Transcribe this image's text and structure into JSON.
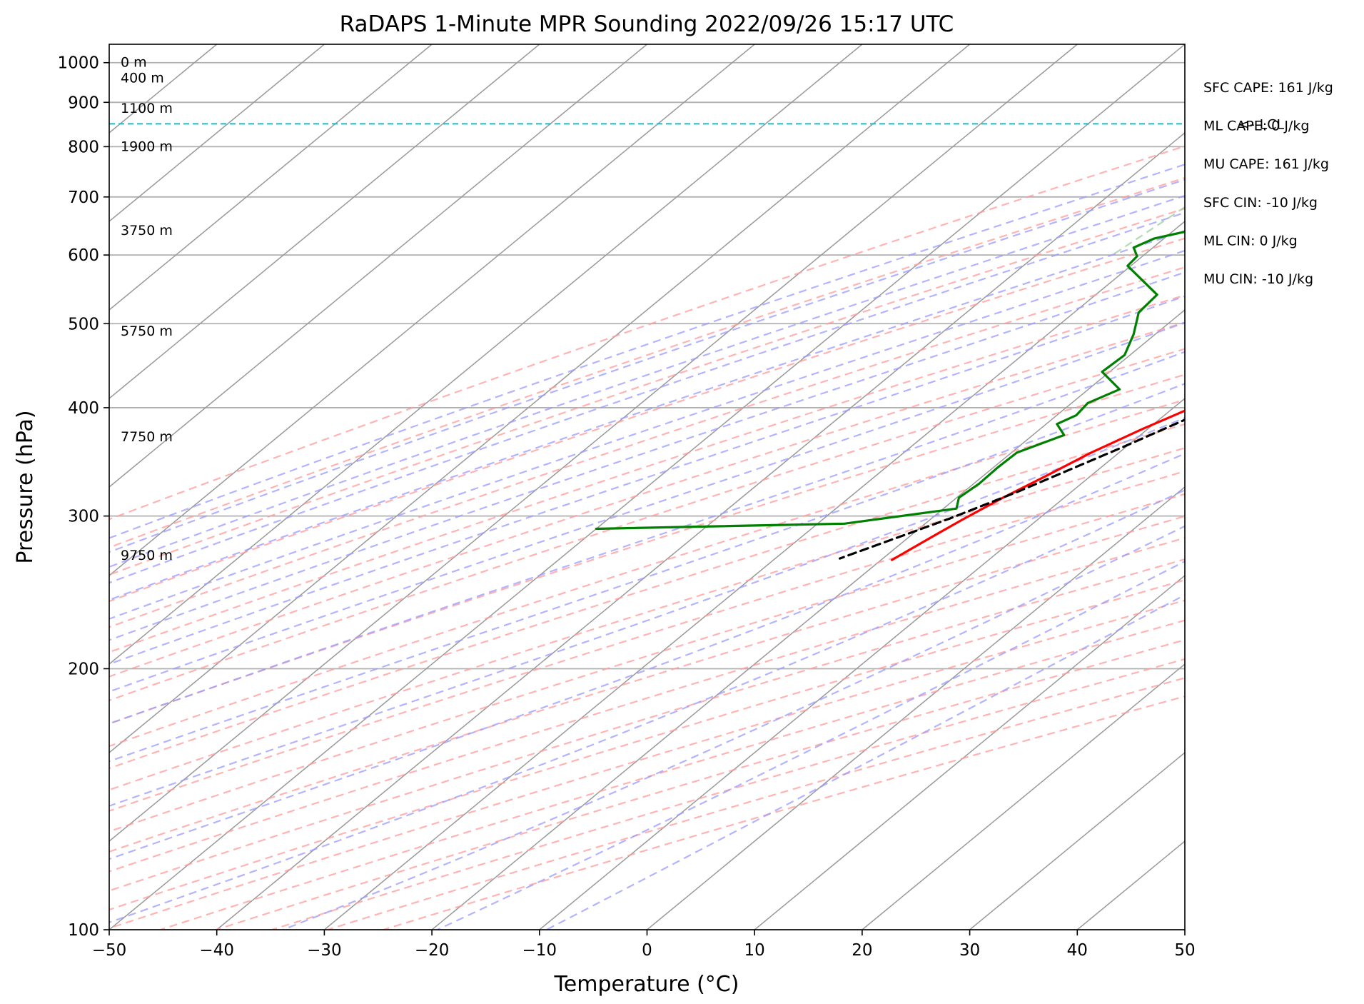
{
  "chart_data": {
    "type": "line",
    "title": "RaDAPS 1-Minute MPR Sounding 2022/09/26 15:17 UTC",
    "xlabel": "Temperature (°C)",
    "ylabel": "Pressure (hPa)",
    "xlim": [
      -50,
      50
    ],
    "ylim": [
      1050,
      100
    ],
    "y_scale": "log",
    "x_ticks": [
      -50,
      -40,
      -30,
      -20,
      -10,
      0,
      10,
      20,
      30,
      40,
      50
    ],
    "x_tick_labels": [
      "−50",
      "−40",
      "−30",
      "−20",
      "−10",
      "0",
      "10",
      "20",
      "30",
      "40",
      "50"
    ],
    "y_ticks": [
      100,
      200,
      300,
      400,
      500,
      600,
      700,
      800,
      900,
      1000
    ],
    "y_tick_labels": [
      "100",
      "200",
      "300",
      "400",
      "500",
      "600",
      "700",
      "800",
      "900",
      "1000"
    ],
    "grid": true,
    "skew_t": true,
    "height_labels": [
      {
        "text": "9750 m",
        "p": 270
      },
      {
        "text": "7750 m",
        "p": 370
      },
      {
        "text": "5750 m",
        "p": 490
      },
      {
        "text": "3750 m",
        "p": 640
      },
      {
        "text": "1900 m",
        "p": 800
      },
      {
        "text": "1100 m",
        "p": 885
      },
      {
        "text": "400 m",
        "p": 960
      },
      {
        "text": "0 m",
        "p": 1000
      }
    ],
    "lcl": {
      "p": 850,
      "label": "<--LCL",
      "color": "#17becf"
    },
    "series": [
      {
        "key": "temperature",
        "color": "#ff0000",
        "points": [
          [
            24.2,
            993
          ],
          [
            23.5,
            980
          ],
          [
            20.0,
            930
          ],
          [
            17.5,
            895
          ],
          [
            14.3,
            850
          ],
          [
            13.0,
            828
          ],
          [
            10.5,
            760
          ],
          [
            9.6,
            713
          ],
          [
            8.9,
            690
          ],
          [
            7.1,
            655
          ],
          [
            5.6,
            628
          ],
          [
            3.9,
            593
          ],
          [
            2.2,
            558
          ],
          [
            1.6,
            540
          ],
          [
            -0.3,
            510
          ],
          [
            -2.1,
            483
          ],
          [
            -3.4,
            463
          ],
          [
            -4.9,
            438
          ],
          [
            -6.5,
            420
          ],
          [
            -8.3,
            400
          ],
          [
            -10.5,
            378
          ],
          [
            -12.6,
            355
          ],
          [
            -14.2,
            333
          ],
          [
            -15.7,
            315
          ],
          [
            -17.0,
            297
          ],
          [
            -17.8,
            285
          ],
          [
            -19.0,
            267
          ]
        ]
      },
      {
        "key": "dewpoint",
        "color": "#008000",
        "points": [
          [
            13.6,
            993
          ],
          [
            10.6,
            988
          ],
          [
            8.2,
            978
          ],
          [
            7.9,
            968
          ],
          [
            8.8,
            960
          ],
          [
            9.6,
            935
          ],
          [
            11.2,
            913
          ],
          [
            11.0,
            897
          ],
          [
            10.1,
            880
          ],
          [
            9.8,
            863
          ],
          [
            6.7,
            846
          ],
          [
            2.8,
            832
          ],
          [
            1.0,
            820
          ],
          [
            -0.7,
            800
          ],
          [
            -4.9,
            783
          ],
          [
            -14.5,
            755
          ],
          [
            -18.2,
            730
          ],
          [
            -21.4,
            705
          ],
          [
            -22.8,
            690
          ],
          [
            -24.5,
            672
          ],
          [
            -25.8,
            655
          ],
          [
            -30.9,
            627
          ],
          [
            -31.8,
            612
          ],
          [
            -30.5,
            598
          ],
          [
            -30.3,
            583
          ],
          [
            -24.3,
            540
          ],
          [
            -24.0,
            515
          ],
          [
            -22.0,
            486
          ],
          [
            -20.5,
            460
          ],
          [
            -20.7,
            440
          ],
          [
            -17.1,
            420
          ],
          [
            -18.5,
            405
          ],
          [
            -18.2,
            392
          ],
          [
            -19.0,
            383
          ],
          [
            -17.1,
            372
          ],
          [
            -19.5,
            355
          ],
          [
            -19.6,
            341
          ],
          [
            -19.5,
            327
          ],
          [
            -19.8,
            315
          ],
          [
            -18.8,
            306
          ],
          [
            -27.5,
            294
          ],
          [
            -50.0,
            290
          ]
        ]
      },
      {
        "key": "parcel",
        "color": "#000000",
        "dashed": true,
        "points": [
          [
            24.2,
            995
          ],
          [
            19.4,
            930
          ],
          [
            17.6,
            900
          ],
          [
            14.4,
            850
          ],
          [
            13.2,
            820
          ],
          [
            11.8,
            780
          ],
          [
            10.0,
            730
          ],
          [
            9.1,
            690
          ],
          [
            7.7,
            650
          ],
          [
            5.5,
            600
          ],
          [
            3.9,
            560
          ],
          [
            1.8,
            520
          ],
          [
            -0.5,
            480
          ],
          [
            -3.2,
            440
          ],
          [
            -6.4,
            400
          ],
          [
            -10.3,
            360
          ],
          [
            -15.0,
            320
          ],
          [
            -18.3,
            298
          ],
          [
            -24.0,
            268
          ]
        ]
      }
    ],
    "stats": [
      "SFC CAPE: 161 J/kg",
      "ML CAPE: 0 J/kg",
      "MU CAPE: 161 J/kg",
      "SFC CIN: -10 J/kg",
      "ML CIN: 0 J/kg",
      "MU CIN: -10 J/kg"
    ],
    "reference_lines": {
      "isotherm_color": "#999999",
      "dry_adiabat_color": "#ff9999",
      "moist_adiabat_color": "#9999ff",
      "mixing_ratio_color": "#99cc99"
    }
  }
}
